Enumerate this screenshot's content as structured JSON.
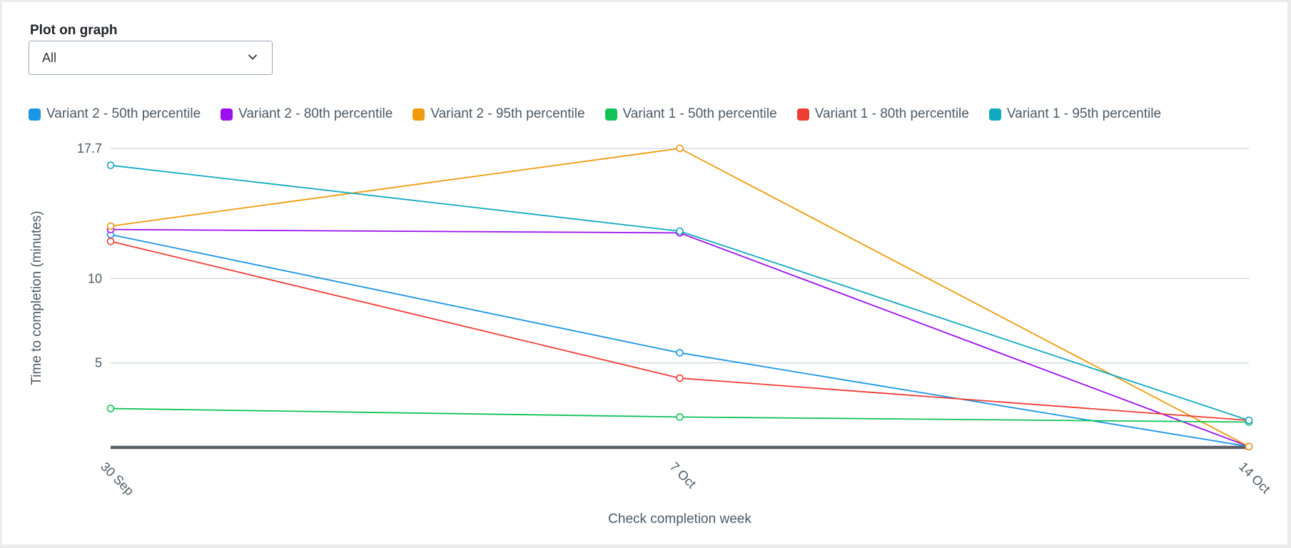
{
  "filter": {
    "label": "Plot on graph",
    "selected": "All",
    "chevron_icon": "chevron-down-icon"
  },
  "chart_data": {
    "type": "line",
    "x": [
      "30 Sep",
      "7 Oct",
      "14 Oct"
    ],
    "xlabel": "Check completion week",
    "ylabel": "Time to completion (minutes)",
    "ylim": [
      0,
      17.7
    ],
    "yticks": [
      {
        "value": 5,
        "label": "5"
      },
      {
        "value": 10,
        "label": "10"
      },
      {
        "value": 17.7,
        "label": "17.7"
      }
    ],
    "grid": true,
    "legend": "top",
    "series": [
      {
        "name": "Variant 2 - 50th percentile",
        "color": "#1a96e6",
        "values": [
          12.6,
          5.6,
          0.05
        ]
      },
      {
        "name": "Variant 2 - 80th percentile",
        "color": "#9b10ec",
        "values": [
          12.9,
          12.7,
          0.05
        ]
      },
      {
        "name": "Variant 2 - 95th percentile",
        "color": "#ee9a0a",
        "values": [
          13.1,
          17.7,
          0.05
        ]
      },
      {
        "name": "Variant 1 - 50th percentile",
        "color": "#12c257",
        "values": [
          2.3,
          1.8,
          1.5
        ]
      },
      {
        "name": "Variant 1 - 80th percentile",
        "color": "#ee3d33",
        "values": [
          12.2,
          4.1,
          1.6
        ]
      },
      {
        "name": "Variant 1 - 95th percentile",
        "color": "#10a9bf",
        "values": [
          16.7,
          12.8,
          1.6
        ]
      }
    ]
  }
}
